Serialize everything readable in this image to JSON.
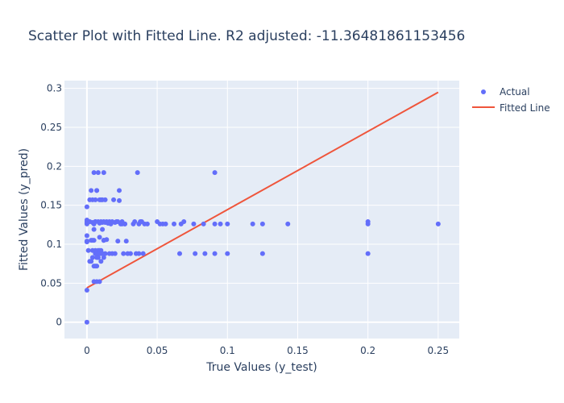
{
  "chart_data": {
    "type": "scatter",
    "title": "Scatter Plot with Fitted Line. R2 adjusted: -11.36481861153456",
    "xlabel": "True Values (y_test)",
    "ylabel": "Fitted Values (y_pred)",
    "xlim": [
      -0.016,
      0.265
    ],
    "ylim": [
      -0.021,
      0.31
    ],
    "xticks": [
      0,
      0.05,
      0.1,
      0.15,
      0.2,
      0.25
    ],
    "xtick_labels": [
      "0",
      "0.05",
      "0.1",
      "0.15",
      "0.2",
      "0.25"
    ],
    "yticks": [
      0,
      0.05,
      0.1,
      0.15,
      0.2,
      0.25,
      0.3
    ],
    "ytick_labels": [
      "0",
      "0.05",
      "0.1",
      "0.15",
      "0.2",
      "0.25",
      "0.3"
    ],
    "grid": true,
    "legend": "top-right",
    "series": [
      {
        "name": "Actual",
        "mode": "markers",
        "color": "#636efa",
        "x": [
          0,
          0,
          0,
          0,
          0,
          0,
          0,
          0,
          0,
          0,
          0.001,
          0.002,
          0.002,
          0.003,
          0.004,
          0.004,
          0.005,
          0.005,
          0.005,
          0.006,
          0.006,
          0.007,
          0.007,
          0.007,
          0.008,
          0.008,
          0.009,
          0.009,
          0.01,
          0.01,
          0.011,
          0.011,
          0.012,
          0.012,
          0.013,
          0.013,
          0.014,
          0.015,
          0.016,
          0.017,
          0.018,
          0.019,
          0.02,
          0.021,
          0.022,
          0.023,
          0.024,
          0.025,
          0.026,
          0.027,
          0.028,
          0.029,
          0.031,
          0.033,
          0.034,
          0.035,
          0.036,
          0.037,
          0.038,
          0.039,
          0.04,
          0.041,
          0.043,
          0.05,
          0.052,
          0.054,
          0.056,
          0.062,
          0.066,
          0.067,
          0.069,
          0.076,
          0.077,
          0.083,
          0.084,
          0.091,
          0.091,
          0.091,
          0.095,
          0.1,
          0.1,
          0.118,
          0.125,
          0.125,
          0.143,
          0.2,
          0.2,
          0.2,
          0.25,
          0.037,
          0.004,
          0.006,
          0.008,
          0.01,
          0.003,
          0.005,
          0.007,
          0.009,
          0.011,
          0.013,
          0.002,
          0.004,
          0.006,
          0.008,
          0.01,
          0.012,
          0.014,
          0.016,
          0.003,
          0.005,
          0.007,
          0.009,
          0.004,
          0.006,
          0.008,
          0.01,
          0.012,
          0.005,
          0.007,
          0.009,
          0.02,
          0.023,
          0.015,
          0.022,
          0.027,
          0.025,
          0.018,
          0.012,
          0.009,
          0.011,
          0.006
        ],
        "y": [
          0,
          0.041,
          0.104,
          0.111,
          0.129,
          0.131,
          0.148,
          0.127,
          0.126,
          0.103,
          0.092,
          0.078,
          0.157,
          0.169,
          0.128,
          0.083,
          0.105,
          0.072,
          0.192,
          0.157,
          0.129,
          0.088,
          0.052,
          0.169,
          0.192,
          0.092,
          0.109,
          0.052,
          0.157,
          0.078,
          0.119,
          0.128,
          0.083,
          0.105,
          0.157,
          0.088,
          0.129,
          0.127,
          0.088,
          0.126,
          0.088,
          0.157,
          0.088,
          0.129,
          0.104,
          0.169,
          0.126,
          0.129,
          0.088,
          0.126,
          0.104,
          0.088,
          0.088,
          0.126,
          0.129,
          0.088,
          0.192,
          0.088,
          0.129,
          0.129,
          0.088,
          0.126,
          0.126,
          0.129,
          0.126,
          0.126,
          0.126,
          0.126,
          0.088,
          0.126,
          0.129,
          0.126,
          0.088,
          0.126,
          0.088,
          0.192,
          0.088,
          0.126,
          0.126,
          0.126,
          0.088,
          0.126,
          0.126,
          0.088,
          0.126,
          0.088,
          0.126,
          0.129,
          0.126,
          0.126,
          0.092,
          0.088,
          0.083,
          0.092,
          0.078,
          0.052,
          0.083,
          0.092,
          0.157,
          0.128,
          0.129,
          0.105,
          0.129,
          0.129,
          0.129,
          0.105,
          0.106,
          0.129,
          0.105,
          0.119,
          0.072,
          0.157,
          0.157,
          0.092,
          0.083,
          0.088,
          0.192,
          0.126,
          0.169,
          0.127,
          0.128,
          0.156,
          0.127,
          0.129,
          0.126,
          0.126,
          0.129,
          0.129,
          0.088,
          0.088,
          0.072
        ]
      },
      {
        "name": "Fitted Line",
        "mode": "lines",
        "color": "#ef553b",
        "x": [
          0,
          0.25
        ],
        "y": [
          0.044,
          0.295
        ]
      }
    ]
  }
}
